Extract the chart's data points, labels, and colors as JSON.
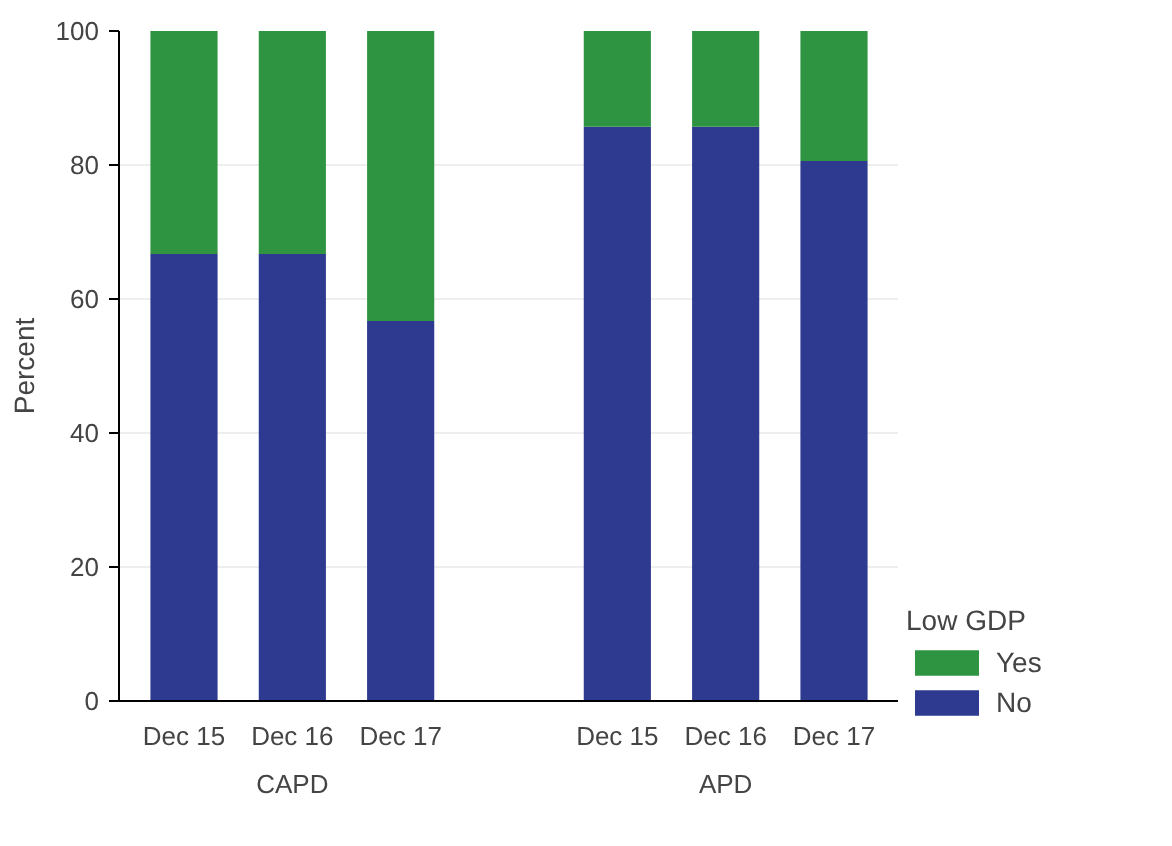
{
  "chart_data": {
    "type": "bar",
    "stacked": true,
    "ylabel": "Percent",
    "legend_title": "Low GDP",
    "legend": "bottom right",
    "grid": "y",
    "categories": [
      "Dec 15",
      "Dec 16",
      "Dec 17",
      null,
      "Dec 15",
      "Dec 16",
      "Dec 17"
    ],
    "annotations": [
      "CAPD",
      "APD"
    ],
    "series": [
      {
        "name": "No",
        "color": "#2d3a8f",
        "values": [
          66.7,
          66.7,
          56.7,
          null,
          85.7,
          85.7,
          80.6
        ]
      },
      {
        "name": "Yes",
        "color": "#2e9441",
        "values": [
          33.3,
          33.3,
          43.3,
          null,
          14.3,
          14.3,
          19.4
        ]
      }
    ],
    "ylim": [
      0,
      100
    ],
    "yticks": [
      0,
      20,
      40,
      60,
      80,
      100
    ]
  }
}
